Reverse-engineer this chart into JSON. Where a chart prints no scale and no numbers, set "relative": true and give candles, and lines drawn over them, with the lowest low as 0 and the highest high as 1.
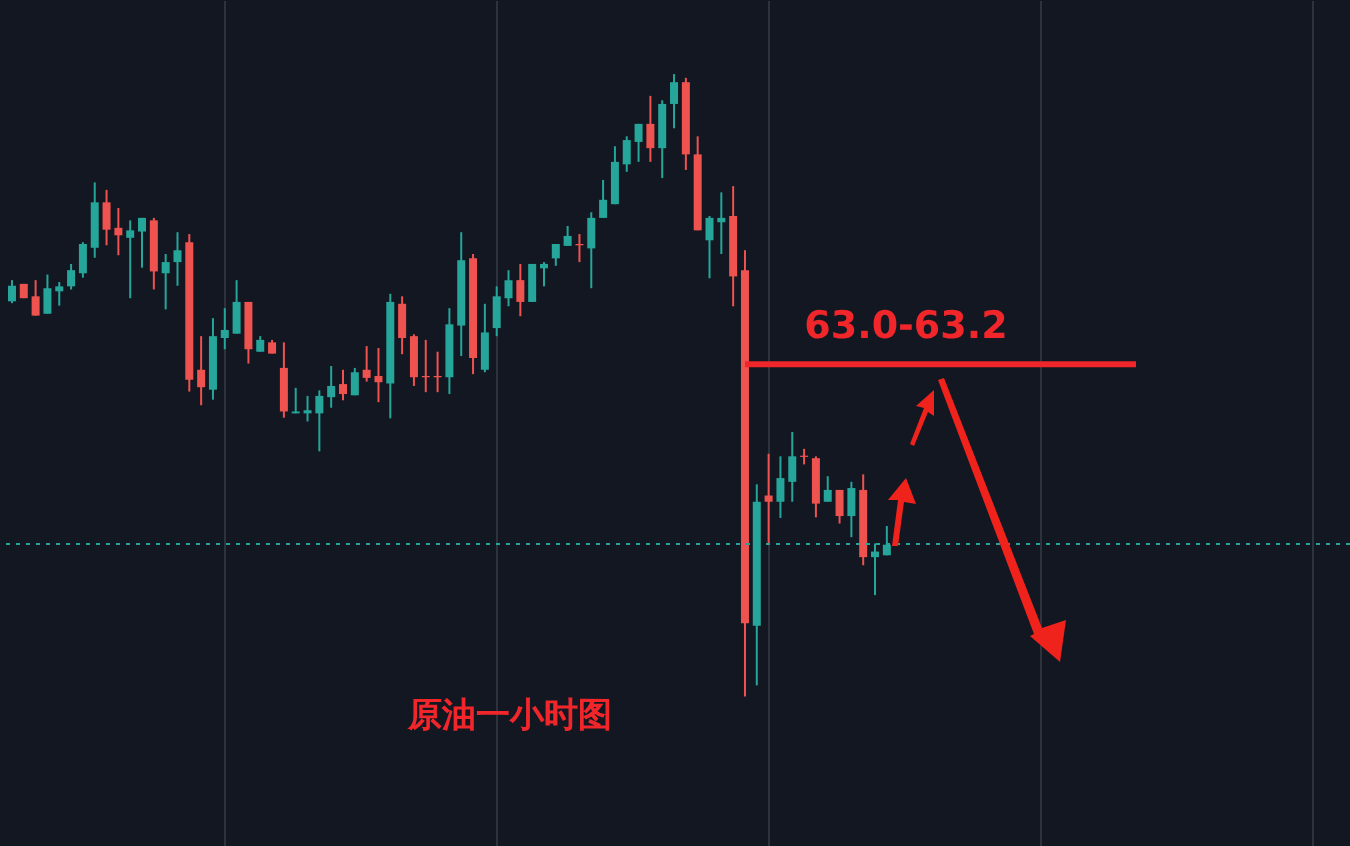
{
  "chart_data": {
    "type": "candlestick",
    "relative": true,
    "grid": "x",
    "categories": [
      null,
      null,
      null,
      null,
      null,
      null,
      null,
      null,
      null,
      null,
      null,
      null,
      null,
      null,
      null,
      null,
      null,
      null,
      null,
      null,
      null,
      null,
      null,
      null,
      null,
      null,
      null,
      null,
      null,
      null,
      null,
      null,
      null,
      null,
      null,
      null,
      null,
      null,
      null,
      null,
      null,
      null,
      null,
      null,
      null,
      null,
      null,
      null,
      null,
      null,
      null,
      null,
      null,
      null,
      null,
      null,
      null,
      null,
      null,
      null,
      null,
      null,
      null,
      null,
      null,
      null,
      null,
      null,
      null,
      null,
      null,
      null,
      null,
      null,
      null
    ],
    "ohlc": [
      [
        0.635,
        0.669,
        0.632,
        0.66
      ],
      [
        0.663,
        0.663,
        0.64,
        0.64
      ],
      [
        0.643,
        0.669,
        0.612,
        0.612
      ],
      [
        0.615,
        0.678,
        0.615,
        0.656
      ],
      [
        0.651,
        0.666,
        0.628,
        0.659
      ],
      [
        0.659,
        0.695,
        0.654,
        0.685
      ],
      [
        0.68,
        0.73,
        0.673,
        0.727
      ],
      [
        0.721,
        0.826,
        0.705,
        0.794
      ],
      [
        0.794,
        0.814,
        0.725,
        0.75
      ],
      [
        0.753,
        0.785,
        0.709,
        0.741
      ],
      [
        0.737,
        0.765,
        0.64,
        0.749
      ],
      [
        0.747,
        0.769,
        0.689,
        0.769
      ],
      [
        0.765,
        0.769,
        0.654,
        0.683
      ],
      [
        0.68,
        0.711,
        0.622,
        0.698
      ],
      [
        0.698,
        0.746,
        0.66,
        0.717
      ],
      [
        0.73,
        0.743,
        0.49,
        0.509
      ],
      [
        0.525,
        0.579,
        0.468,
        0.497
      ],
      [
        0.493,
        0.608,
        0.477,
        0.579
      ],
      [
        0.576,
        0.624,
        0.558,
        0.589
      ],
      [
        0.583,
        0.669,
        0.583,
        0.634
      ],
      [
        0.634,
        0.634,
        0.535,
        0.558
      ],
      [
        0.554,
        0.579,
        0.554,
        0.573
      ],
      [
        0.569,
        0.573,
        0.551,
        0.551
      ],
      [
        0.528,
        0.569,
        0.448,
        0.458
      ],
      [
        0.455,
        0.496,
        0.455,
        0.458
      ],
      [
        0.455,
        0.483,
        0.442,
        0.46
      ],
      [
        0.455,
        0.492,
        0.394,
        0.483
      ],
      [
        0.481,
        0.531,
        0.464,
        0.499
      ],
      [
        0.502,
        0.525,
        0.476,
        0.486
      ],
      [
        0.484,
        0.528,
        0.484,
        0.521
      ],
      [
        0.525,
        0.563,
        0.506,
        0.512
      ],
      [
        0.515,
        0.56,
        0.473,
        0.505
      ],
      [
        0.503,
        0.647,
        0.447,
        0.634
      ],
      [
        0.631,
        0.643,
        0.55,
        0.576
      ],
      [
        0.579,
        0.582,
        0.499,
        0.513
      ],
      [
        0.515,
        0.573,
        0.489,
        0.513
      ],
      [
        0.515,
        0.554,
        0.489,
        0.513
      ],
      [
        0.513,
        0.624,
        0.486,
        0.598
      ],
      [
        0.596,
        0.746,
        0.547,
        0.701
      ],
      [
        0.704,
        0.711,
        0.518,
        0.544
      ],
      [
        0.525,
        0.631,
        0.521,
        0.585
      ],
      [
        0.592,
        0.659,
        0.579,
        0.643
      ],
      [
        0.64,
        0.685,
        0.627,
        0.669
      ],
      [
        0.669,
        0.695,
        0.611,
        0.634
      ],
      [
        0.634,
        0.695,
        0.634,
        0.695
      ],
      [
        0.688,
        0.698,
        0.659,
        0.695
      ],
      [
        0.704,
        0.727,
        0.692,
        0.727
      ],
      [
        0.724,
        0.756,
        0.724,
        0.74
      ],
      [
        0.727,
        0.743,
        0.698,
        0.725
      ],
      [
        0.72,
        0.778,
        0.656,
        0.769
      ],
      [
        0.769,
        0.83,
        0.769,
        0.798
      ],
      [
        0.791,
        0.884,
        0.791,
        0.859
      ],
      [
        0.855,
        0.9,
        0.843,
        0.894
      ],
      [
        0.891,
        0.92,
        0.859,
        0.92
      ],
      [
        0.92,
        0.965,
        0.859,
        0.881
      ],
      [
        0.881,
        0.958,
        0.833,
        0.952
      ],
      [
        0.952,
        1.0,
        0.913,
        0.987
      ],
      [
        0.987,
        0.994,
        0.846,
        0.871
      ],
      [
        0.871,
        0.9,
        0.749,
        0.749
      ],
      [
        0.733,
        0.772,
        0.672,
        0.769
      ],
      [
        0.762,
        0.81,
        0.711,
        0.769
      ],
      [
        0.772,
        0.82,
        0.627,
        0.675
      ],
      [
        0.685,
        0.717,
        0.0,
        0.118
      ],
      [
        0.114,
        0.341,
        0.018,
        0.313
      ],
      [
        0.323,
        0.39,
        0.246,
        0.313
      ],
      [
        0.313,
        0.386,
        0.287,
        0.351
      ],
      [
        0.345,
        0.425,
        0.313,
        0.386
      ],
      [
        0.387,
        0.398,
        0.373,
        0.385
      ],
      [
        0.383,
        0.386,
        0.288,
        0.31
      ],
      [
        0.313,
        0.354,
        0.313,
        0.332
      ],
      [
        0.332,
        0.332,
        0.278,
        0.29
      ],
      [
        0.29,
        0.345,
        0.256,
        0.335
      ],
      [
        0.332,
        0.357,
        0.211,
        0.224
      ],
      [
        0.224,
        0.246,
        0.163,
        0.233
      ],
      [
        0.227,
        0.274,
        0.227,
        0.244
      ]
    ],
    "ref_lines": [
      {
        "axis": "y",
        "value": 0.245,
        "color": "#26a69a",
        "line_style": "dotted"
      },
      {
        "axis": "y",
        "value": 0.534,
        "color": "#f0262a",
        "line_style": "solid"
      }
    ],
    "annotations": [
      "63.0-63.2",
      "原油一小时图"
    ]
  }
}
